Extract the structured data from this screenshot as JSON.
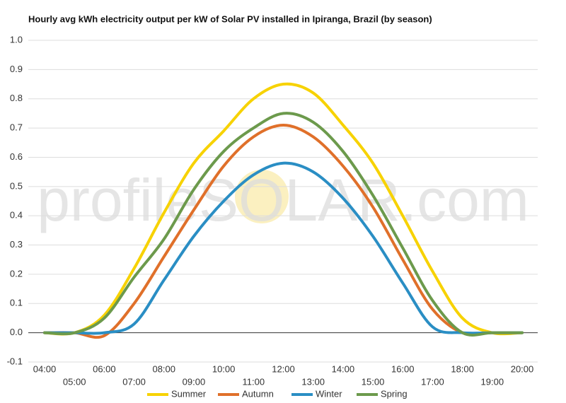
{
  "chart_data": {
    "type": "line",
    "title": "Hourly avg kWh electricity output per kW of Solar PV installed in Ipiranga, Brazil (by season)",
    "watermark": "profileSOLAR.com",
    "categories": [
      "04:00",
      "05:00",
      "06:00",
      "07:00",
      "08:00",
      "09:00",
      "10:00",
      "11:00",
      "12:00",
      "13:00",
      "14:00",
      "15:00",
      "16:00",
      "17:00",
      "18:00",
      "19:00",
      "20:00"
    ],
    "series": [
      {
        "name": "Summer",
        "color": "#f7d200",
        "values": [
          0,
          0,
          0.06,
          0.22,
          0.41,
          0.58,
          0.69,
          0.8,
          0.85,
          0.82,
          0.71,
          0.58,
          0.4,
          0.21,
          0.05,
          0,
          0
        ]
      },
      {
        "name": "Autumn",
        "color": "#e0702a",
        "values": [
          0,
          0,
          -0.01,
          0.1,
          0.26,
          0.42,
          0.57,
          0.67,
          0.71,
          0.67,
          0.57,
          0.43,
          0.25,
          0.08,
          0,
          0,
          0
        ]
      },
      {
        "name": "Winter",
        "color": "#2a8ec4",
        "values": [
          0,
          0,
          0,
          0.03,
          0.18,
          0.33,
          0.45,
          0.54,
          0.58,
          0.55,
          0.46,
          0.33,
          0.17,
          0.02,
          0,
          0,
          0
        ]
      },
      {
        "name": "Spring",
        "color": "#6c9a4c",
        "values": [
          0,
          0,
          0.05,
          0.19,
          0.32,
          0.49,
          0.62,
          0.7,
          0.75,
          0.72,
          0.62,
          0.47,
          0.29,
          0.11,
          0,
          0,
          0
        ]
      }
    ],
    "ylim": [
      -0.1,
      1.0
    ],
    "yticks": [
      -0.1,
      {
        "value": 0,
        "label": "0.0"
      },
      0.1,
      0.2,
      0.3,
      0.4,
      0.5,
      0.6,
      0.7,
      0.8,
      0.9,
      {
        "value": 1,
        "label": "1.0"
      }
    ],
    "grid": true,
    "legend": "bottom"
  }
}
